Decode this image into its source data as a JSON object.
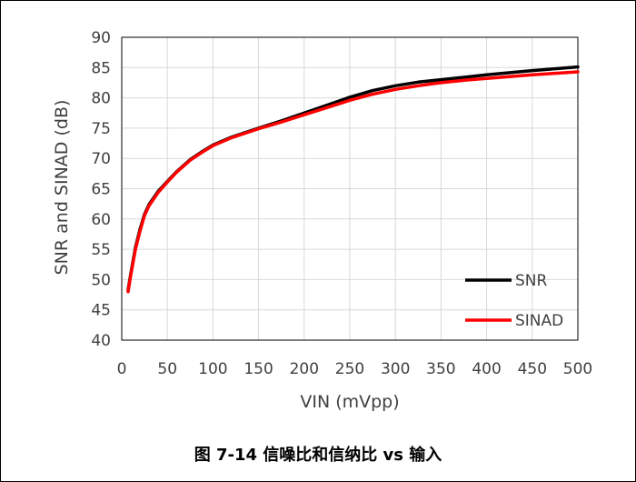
{
  "chart_data": {
    "type": "line",
    "title": "",
    "xlabel": "VIN (mVpp)",
    "ylabel": "SNR and SINAD (dB)",
    "xlim": [
      0,
      500
    ],
    "ylim": [
      40,
      90
    ],
    "xticks": [
      0,
      50,
      100,
      150,
      200,
      250,
      300,
      350,
      400,
      450,
      500
    ],
    "yticks": [
      40,
      45,
      50,
      55,
      60,
      65,
      70,
      75,
      80,
      85,
      90
    ],
    "grid": true,
    "legend_position": "bottom-right",
    "series": [
      {
        "name": "SNR",
        "color": "#000000",
        "x": [
          7,
          10,
          15,
          20,
          25,
          30,
          40,
          50,
          60,
          75,
          90,
          100,
          120,
          150,
          175,
          200,
          225,
          250,
          275,
          300,
          325,
          350,
          375,
          400,
          450,
          500
        ],
        "y": [
          48.3,
          51,
          55.3,
          58.3,
          60.8,
          62.4,
          64.6,
          66.2,
          67.8,
          69.8,
          71.3,
          72.2,
          73.5,
          75.0,
          76.2,
          77.5,
          78.8,
          80.1,
          81.2,
          82.0,
          82.6,
          83.0,
          83.4,
          83.8,
          84.5,
          85.1
        ]
      },
      {
        "name": "SINAD",
        "color": "#ff0000",
        "x": [
          7,
          10,
          15,
          20,
          25,
          30,
          40,
          50,
          60,
          75,
          90,
          100,
          120,
          150,
          175,
          200,
          225,
          250,
          275,
          300,
          325,
          350,
          375,
          400,
          450,
          500
        ],
        "y": [
          48.0,
          50.8,
          55.0,
          58.0,
          60.6,
          62.2,
          64.4,
          66.1,
          67.7,
          69.7,
          71.2,
          72.1,
          73.4,
          74.9,
          76.0,
          77.2,
          78.4,
          79.6,
          80.6,
          81.4,
          82.0,
          82.5,
          82.9,
          83.2,
          83.8,
          84.3
        ]
      }
    ]
  },
  "caption": "图 7-14 信噪比和信纳比 vs 输入"
}
